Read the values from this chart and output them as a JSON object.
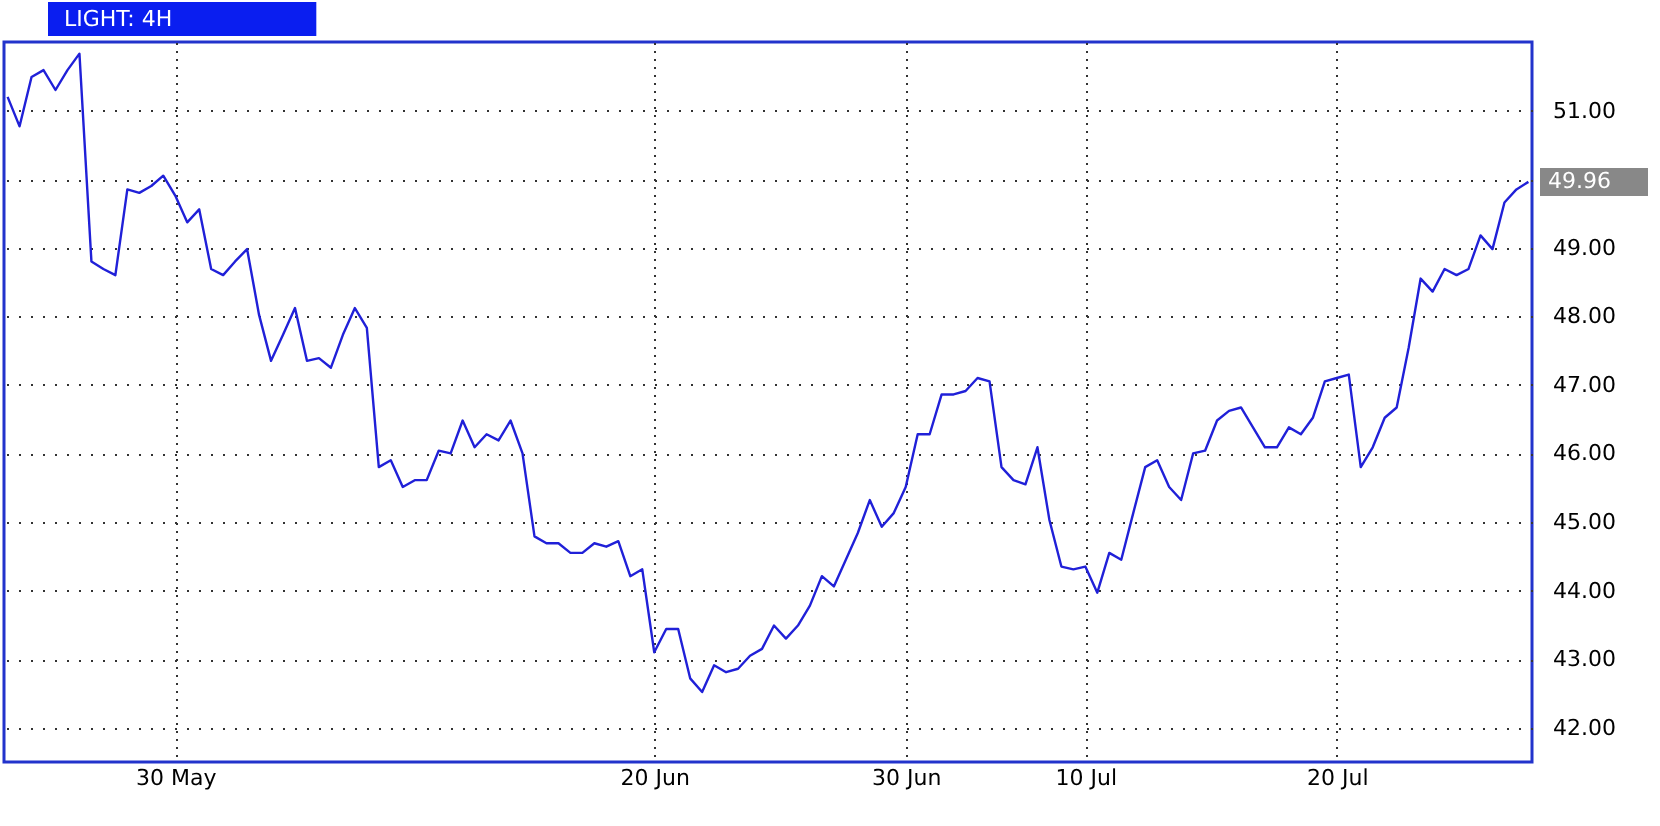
{
  "chart_data": {
    "type": "line",
    "title": "LIGHT: 4H",
    "categories": [
      null,
      null,
      null,
      null,
      null,
      null,
      null,
      null,
      null,
      null,
      null,
      null,
      null,
      null,
      "30 May",
      null,
      null,
      null,
      null,
      null,
      null,
      null,
      null,
      null,
      null,
      null,
      null,
      null,
      null,
      null,
      null,
      null,
      null,
      null,
      null,
      null,
      null,
      null,
      null,
      null,
      null,
      null,
      null,
      null,
      null,
      null,
      null,
      null,
      null,
      null,
      null,
      null,
      null,
      null,
      "20 Jun",
      null,
      null,
      null,
      null,
      null,
      null,
      null,
      null,
      null,
      null,
      null,
      null,
      null,
      null,
      null,
      null,
      null,
      null,
      null,
      null,
      "30 Jun",
      null,
      null,
      null,
      null,
      null,
      null,
      null,
      null,
      null,
      null,
      null,
      null,
      null,
      null,
      "10 Jul",
      null,
      null,
      null,
      null,
      null,
      null,
      null,
      null,
      null,
      null,
      null,
      null,
      null,
      null,
      null,
      null,
      null,
      null,
      null,
      null,
      "20 Jul",
      null,
      null,
      null,
      null,
      null,
      null,
      null,
      null,
      null,
      null,
      null,
      null,
      null,
      null,
      null,
      null
    ],
    "series": [
      {
        "color": "#2020d8",
        "values": [
          51.2,
          50.77,
          51.49,
          51.59,
          51.3,
          51.59,
          51.83,
          48.8,
          48.69,
          48.6,
          49.85,
          49.8,
          49.9,
          50.05,
          49.76,
          49.37,
          49.56,
          48.69,
          48.6,
          48.8,
          48.98,
          48.02,
          47.35,
          47.73,
          48.12,
          47.35,
          47.39,
          47.25,
          47.73,
          48.12,
          47.83,
          45.8,
          45.9,
          45.51,
          45.61,
          45.61,
          46.04,
          46.0,
          46.48,
          46.09,
          46.28,
          46.19,
          46.48,
          46.0,
          44.79,
          44.69,
          44.69,
          44.55,
          44.55,
          44.69,
          44.64,
          44.72,
          44.21,
          44.31,
          43.1,
          43.44,
          43.44,
          42.72,
          42.52,
          42.91,
          42.81,
          42.86,
          43.05,
          43.15,
          43.49,
          43.3,
          43.49,
          43.78,
          44.21,
          44.06,
          44.45,
          44.84,
          45.32,
          44.93,
          45.13,
          45.51,
          46.28,
          46.28,
          46.86,
          46.86,
          46.91,
          47.1,
          47.05,
          45.8,
          45.61,
          45.55,
          46.09,
          45.03,
          44.35,
          44.31,
          44.35,
          43.97,
          44.55,
          44.45,
          45.13,
          45.8,
          45.9,
          45.51,
          45.32,
          46.0,
          46.04,
          46.48,
          46.62,
          46.67,
          46.38,
          46.09,
          46.09,
          46.38,
          46.28,
          46.52,
          47.05,
          47.1,
          47.15,
          45.8,
          46.09,
          46.52,
          46.67,
          47.54,
          48.55,
          48.36,
          48.69,
          48.6,
          48.69,
          49.18,
          48.98,
          49.66,
          49.85,
          49.96
        ]
      }
    ],
    "ylim": [
      41.5,
      52
    ],
    "yticks": [
      {
        "value": 42,
        "label": "42.00"
      },
      {
        "value": 43,
        "label": "43.00"
      },
      {
        "value": 44,
        "label": "44.00"
      },
      {
        "value": 45,
        "label": "45.00"
      },
      {
        "value": 46,
        "label": "46.00"
      },
      {
        "value": 47,
        "label": "47.00"
      },
      {
        "value": 48,
        "label": "48.00"
      },
      {
        "value": 49,
        "label": "49.00"
      },
      {
        "value": 50,
        "label": null
      },
      {
        "value": 51,
        "label": "51.00"
      }
    ],
    "grid": true,
    "annotations": [
      "49.96"
    ]
  }
}
